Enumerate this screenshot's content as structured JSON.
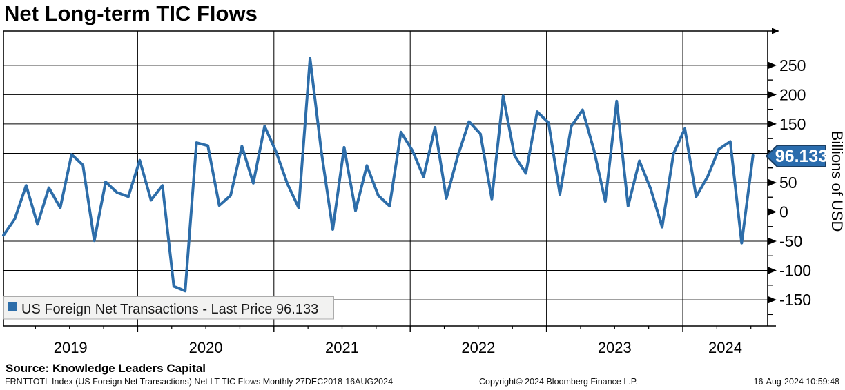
{
  "title": "Net Long-term TIC Flows",
  "source_line": "Source: Knowledge Leaders Capital",
  "footer": {
    "left": "FRNTTOTL Index (US Foreign Net Transactions) Net LT TIC Flows  Monthly 27DEC2018-16AUG2024",
    "center": "Copyright© 2024 Bloomberg Finance L.P.",
    "right": "16-Aug-2024 10:59:48"
  },
  "legend": {
    "label": "US Foreign Net Transactions - Last Price 96.133",
    "swatch_color": "#2d6da9"
  },
  "last_price_badge": {
    "value": "96.133",
    "fill": "#2a6cad",
    "border": "#1c3f63",
    "text_color": "#ffffff"
  },
  "colors": {
    "line": "#2d6da9",
    "grid": "#000000",
    "legend_bg": "#f2f2f1",
    "legend_border": "#ababab"
  },
  "chart_data": {
    "type": "line",
    "title": "Net Long-term TIC Flows",
    "series_name": "US Foreign Net Transactions",
    "period": "Monthly",
    "date_range": "27DEC2018-16AUG2024",
    "last_price": 96.133,
    "ylabel": "Billions of USD",
    "ylim": [
      -195,
      310
    ],
    "grid": true,
    "legend_position": "bottom-left",
    "y_axis": {
      "title": "Billions of USD",
      "ticks": [
        250,
        200,
        150,
        100,
        50,
        0,
        -50,
        -100,
        -150
      ],
      "minor_step": 25,
      "tick_hidden_behind_badge": 100
    },
    "x_axis": {
      "year_labels": [
        "2019",
        "2020",
        "2021",
        "2022",
        "2023",
        "2024"
      ]
    },
    "x": [
      "2018-12",
      "2019-01",
      "2019-02",
      "2019-03",
      "2019-04",
      "2019-05",
      "2019-06",
      "2019-07",
      "2019-08",
      "2019-09",
      "2019-10",
      "2019-11",
      "2019-12",
      "2020-01",
      "2020-02",
      "2020-03",
      "2020-04",
      "2020-05",
      "2020-06",
      "2020-07",
      "2020-08",
      "2020-09",
      "2020-10",
      "2020-11",
      "2020-12",
      "2021-01",
      "2021-02",
      "2021-03",
      "2021-04",
      "2021-05",
      "2021-06",
      "2021-07",
      "2021-08",
      "2021-09",
      "2021-10",
      "2021-11",
      "2021-12",
      "2022-01",
      "2022-02",
      "2022-03",
      "2022-04",
      "2022-05",
      "2022-06",
      "2022-07",
      "2022-08",
      "2022-09",
      "2022-10",
      "2022-11",
      "2022-12",
      "2023-01",
      "2023-02",
      "2023-03",
      "2023-04",
      "2023-05",
      "2023-06",
      "2023-07",
      "2023-08",
      "2023-09",
      "2023-10",
      "2023-11",
      "2023-12",
      "2024-01",
      "2024-02",
      "2024-03",
      "2024-04",
      "2024-05",
      "2024-06"
    ],
    "values": [
      -40,
      -12,
      45,
      -21,
      41,
      7,
      98,
      80,
      -49,
      51,
      33,
      26,
      88,
      20,
      45,
      -127,
      -135,
      118,
      113,
      11,
      28,
      112,
      49,
      146,
      103,
      48,
      7,
      262,
      102,
      -30,
      110,
      2,
      79,
      28,
      10,
      136,
      105,
      60,
      144,
      23,
      95,
      154,
      133,
      22,
      198,
      96,
      66,
      171,
      152,
      30,
      146,
      174,
      105,
      18,
      189,
      10,
      87,
      39,
      -26,
      99,
      142,
      26,
      60,
      107,
      120,
      -53,
      96.133
    ]
  }
}
